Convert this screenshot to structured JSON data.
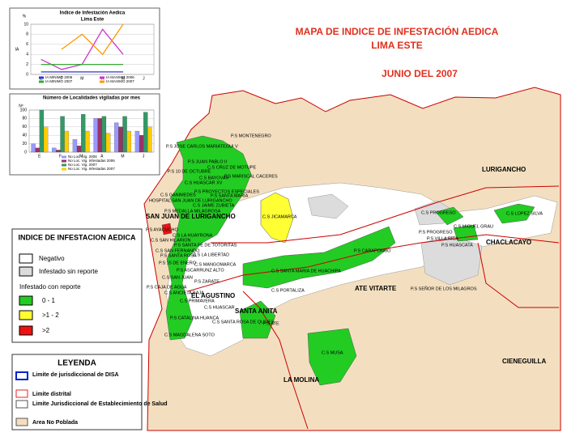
{
  "chart_data": [
    {
      "type": "line",
      "title": "Indice de Infestación Aedica",
      "subtitle": "Lima Este",
      "y_label": "IA",
      "unit_label": "%",
      "categories": [
        "E",
        "F",
        "M",
        "A",
        "M",
        "J"
      ],
      "ylim": [
        0,
        10
      ],
      "yticks": [
        0,
        2,
        4,
        6,
        8,
        10
      ],
      "series": [
        {
          "name": "IA MINIMO 2006",
          "color": "#3333cc",
          "values": [
            0.5,
            0.5,
            0.5,
            0.5,
            0.5,
            null
          ]
        },
        {
          "name": "IA MAXIMO 2006",
          "color": "#cc33cc",
          "values": [
            3,
            1,
            2,
            9,
            4,
            null
          ]
        },
        {
          "name": "IA MINIMO 2007",
          "color": "#33aa33",
          "values": [
            2,
            2,
            2,
            2,
            2,
            null
          ]
        },
        {
          "name": "IA MAXIMO 2007",
          "color": "#ff9900",
          "values": [
            null,
            5,
            8,
            4,
            10,
            null
          ]
        }
      ]
    },
    {
      "type": "bar",
      "title": "Número de Localidades vigiladas por mes",
      "y_label": "Nº",
      "categories": [
        "E",
        "F",
        "M",
        "A",
        "M",
        "J"
      ],
      "ylim": [
        0,
        100
      ],
      "yticks": [
        0,
        20,
        40,
        60,
        80,
        100
      ],
      "series": [
        {
          "name": "No Loc. Vig. 2006",
          "color": "#9999ff",
          "values": [
            20,
            10,
            30,
            80,
            70,
            50
          ]
        },
        {
          "name": "No Loc. Vig. Infestadas 2006",
          "color": "#993366",
          "values": [
            10,
            5,
            15,
            80,
            60,
            40
          ]
        },
        {
          "name": "No Loc. Vig. 2007",
          "color": "#339966",
          "values": [
            100,
            85,
            90,
            85,
            85,
            95
          ]
        },
        {
          "name": "No Loc. Vig. Infestadas 2007",
          "color": "#ffcc00",
          "values": [
            60,
            50,
            50,
            45,
            50,
            60
          ]
        }
      ]
    }
  ],
  "header": {
    "title": "MAPA DE INDICE DE INFESTACIÓN AEDICA",
    "subtitle": "LIMA ESTE",
    "date": "JUNIO DEL 2007"
  },
  "index_legend": {
    "title": "INDICE DE INFESTACION AEDICA",
    "negative": "Negativo",
    "no_report": "Infestado sin reporte",
    "with_report": "Infestado con reporte",
    "ranges": [
      "0 - 1",
      ">1 - 2",
      ">2"
    ]
  },
  "legend": {
    "title": "LEYENDA",
    "items": [
      "Limite de jurisdiccional de DISA",
      "Limite distrital",
      "Limite Jurisdiccional de Establecimiento de Salud",
      "Area No Poblada"
    ]
  },
  "map": {
    "districts": [
      "LURIGANCHO",
      "CHACLACAYO",
      "CIENEGUILLA",
      "LA MOLINA",
      "ATE VITARTE",
      "SANTA ANITA",
      "EL AGUSTINO",
      "SAN JUAN DE LURIGANCHO"
    ],
    "labels": [
      "P.S JOSE CARLOS MARIATEGUI V",
      "P.S MONTENEGRO",
      "P.S JUAN PABLO II",
      "C.S CRUZ DE MOTUPE",
      "P.S 10 DE OCTUBRE",
      "C.S BAYOVAR",
      "C.S HUASCAR XV",
      "P.S MARISCAL CACERES",
      "P.S PROYECTOS ESPECIALES",
      "C.S GANIMEDES",
      "P.S SANTA MARIA",
      "HOSPITAL SAN JUAN DE LURIGANCHO",
      "C.S JAIME ZUBIETA",
      "P.S MEDALLA MILAGROSA",
      "C.S JICAMARCA",
      "P.S AYACUCHO",
      "C.S LA HUAYRONA",
      "C.S SAN HILARION",
      "P.S SANTA FE DE TOTORITAS",
      "C.S SAN FERNANDO",
      "P.S SANTA ROSA",
      "C.S LA LIBERTAD",
      "P.S 15 DE ENERO",
      "C.S MANGOMARCA",
      "P.S ASCARRUNZ ALTO",
      "C.S SAN JUAN",
      "P.S CAJA DE AGUA",
      "P.S ZARATE",
      "C.S SANTA MARIA DE HUACHIPA",
      "P.S CARAPONGO",
      "C.S PORTALIZA",
      "P.S SEÑOR DE LOS MILAGROS",
      "C.S PROGRESO",
      "C.S MIGUEL GRAU",
      "P.S PROGRESO",
      "P.S VILLA RICA",
      "P.S HUASCATA",
      "C.S LOPEZ SILVA",
      "C.S ANCIETA BAJA",
      "C.S PRIMAVERA",
      "C.S HUASCAR",
      "P.S CATALINA HUANCA",
      "C.S SANTA ROSA DE QUIVES",
      "P.S ATE",
      "C.S MUSA",
      "C.S MAGDALENA SOTO"
    ]
  }
}
